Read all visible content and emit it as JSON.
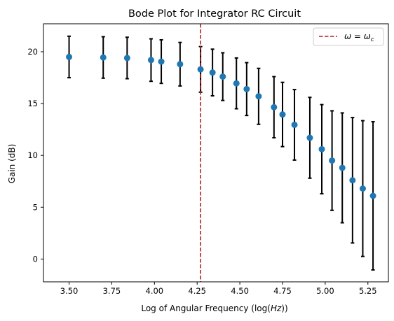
{
  "chart_data": {
    "type": "scatter",
    "title": "Bode Plot for Integrator RC Circuit",
    "xlabel": "Log of Angular Frequency (log(Hz))",
    "ylabel": "Gain (dB)",
    "xlim": [
      3.35,
      5.37
    ],
    "ylim": [
      -2.2,
      22.7
    ],
    "xticks": [
      3.5,
      3.75,
      4.0,
      4.25,
      4.5,
      4.75,
      5.0,
      5.25
    ],
    "xtick_labels": [
      "3.50",
      "3.75",
      "4.00",
      "4.25",
      "4.50",
      "4.75",
      "5.00",
      "5.25"
    ],
    "yticks": [
      0,
      5,
      10,
      15,
      20
    ],
    "ytick_labels": [
      "0",
      "5",
      "10",
      "15",
      "20"
    ],
    "grid": false,
    "legend_position": "top-right",
    "colors": {
      "points": "#1f77b4",
      "errorbars": "#000000",
      "vline": "#b22222"
    },
    "vline": {
      "x": 4.27,
      "label": "ω = ω_c",
      "style": "dashed"
    },
    "series": [
      {
        "x": [
          3.5,
          3.7,
          3.84,
          3.98,
          4.04,
          4.15,
          4.27,
          4.34,
          4.4,
          4.48,
          4.54,
          4.61,
          4.7,
          4.75,
          4.82,
          4.91,
          4.98,
          5.04,
          5.1,
          5.16,
          5.22,
          5.28
        ],
        "y": [
          19.5,
          19.45,
          19.4,
          19.2,
          19.05,
          18.8,
          18.3,
          18.0,
          17.6,
          16.95,
          16.4,
          15.7,
          14.65,
          13.95,
          12.95,
          11.7,
          10.6,
          9.5,
          8.8,
          7.6,
          6.8,
          6.1
        ],
        "yerr": [
          2.0,
          2.0,
          2.0,
          2.05,
          2.1,
          2.1,
          2.2,
          2.25,
          2.3,
          2.45,
          2.55,
          2.7,
          2.95,
          3.1,
          3.4,
          3.9,
          4.3,
          4.8,
          5.3,
          6.05,
          6.55,
          7.15
        ]
      }
    ]
  }
}
